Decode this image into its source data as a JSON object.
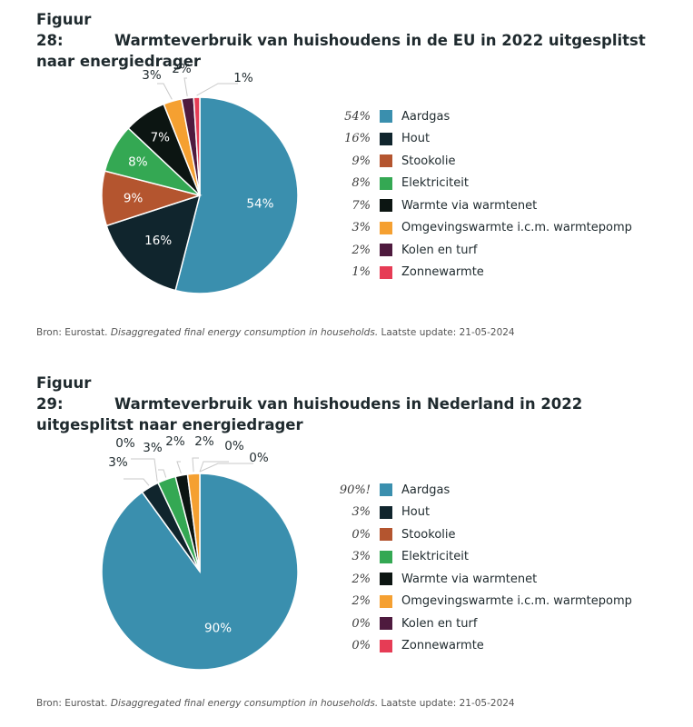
{
  "categories": [
    "Aardgas",
    "Hout",
    "Stookolie",
    "Elektriciteit",
    "Warmte via warmtenet",
    "Omgevingswarmte i.c.m. warmtepomp",
    "Kolen en turf",
    "Zonnewarmte"
  ],
  "colors": {
    "Aardgas": "#3a8fae",
    "Hout": "#10252d",
    "Stookolie": "#b4552f",
    "Elektriciteit": "#34a853",
    "Warmte via warmtenet": "#0c1512",
    "Omgevingswarmte i.c.m. warmtepomp": "#f5a031",
    "Kolen en turf": "#4e1a3e",
    "Zonnewarmte": "#e63c55"
  },
  "chart_data": [
    {
      "type": "pie",
      "number": "Figuur 28:",
      "title": "Warmteverbruik van huishoudens in de EU in 2022 uitgesplitst naar energiedrager",
      "categories": [
        "Aardgas",
        "Hout",
        "Stookolie",
        "Elektriciteit",
        "Warmte via warmtenet",
        "Omgevingswarmte i.c.m. warmtepomp",
        "Kolen en turf",
        "Zonnewarmte"
      ],
      "values": [
        54,
        16,
        9,
        8,
        7,
        3,
        2,
        1
      ],
      "value_labels": [
        "54%",
        "16%",
        "9%",
        "8%",
        "7%",
        "3%",
        "2%",
        "1%"
      ],
      "handwritten_notes": [
        "54%",
        "16%",
        "9%",
        "8%",
        "7%",
        "3%",
        "2%",
        "1%"
      ],
      "legend": "right",
      "source_prefix": "Bron: Eurostat. ",
      "source_italic": "Disaggregated final energy consumption in households.",
      "source_suffix": " Laatste update: 21-05-2024"
    },
    {
      "type": "pie",
      "number": "Figuur 29:",
      "title": "Warmteverbruik van huishoudens in Nederland in 2022 uitgesplitst naar energiedrager",
      "categories": [
        "Aardgas",
        "Hout",
        "Stookolie",
        "Elektriciteit",
        "Warmte via warmtenet",
        "Omgevingswarmte i.c.m. warmtepomp",
        "Kolen en turf",
        "Zonnewarmte"
      ],
      "values": [
        90,
        3,
        0,
        3,
        2,
        2,
        0,
        0
      ],
      "value_labels": [
        "90%",
        "3%",
        "0%",
        "3%",
        "2%",
        "2%",
        "0%",
        "0%"
      ],
      "handwritten_notes": [
        "90%!",
        "3%",
        "0%",
        "3%",
        "2%",
        "2%",
        "0%",
        "0%"
      ],
      "legend": "right",
      "source_prefix": "Bron: Eurostat. ",
      "source_italic": "Disaggregated final energy consumption in households.",
      "source_suffix": " Laatste update: 21-05-2024"
    }
  ]
}
